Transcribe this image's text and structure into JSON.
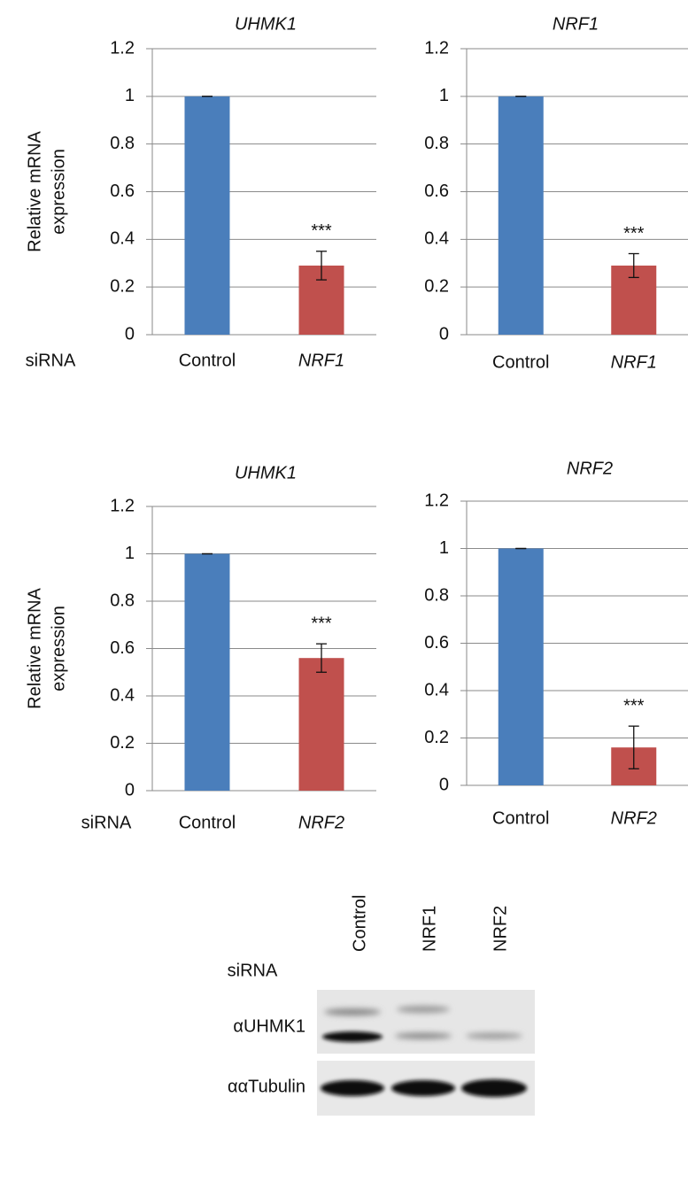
{
  "chart_data": [
    {
      "type": "bar",
      "title": "UHMK1",
      "ylabel": [
        "Relative mRNA",
        "expression"
      ],
      "xlabel": "siRNA",
      "categories": [
        "Control",
        "NRF1"
      ],
      "values": [
        1,
        0.29
      ],
      "errors": [
        0,
        0.06
      ],
      "colors": [
        "#4a7ebb",
        "#c0504d"
      ],
      "annotations": [
        {
          "x": "NRF1",
          "text": "***"
        }
      ],
      "ylim": [
        0,
        1.2
      ],
      "yticks": [
        0,
        0.2,
        0.4,
        0.6,
        0.8,
        1,
        1.2
      ],
      "grid": true
    },
    {
      "type": "bar",
      "title": "NRF1",
      "categories": [
        "Control",
        "NRF1"
      ],
      "values": [
        1,
        0.29
      ],
      "errors": [
        0,
        0.05
      ],
      "colors": [
        "#4a7ebb",
        "#c0504d"
      ],
      "annotations": [
        {
          "x": "NRF1",
          "text": "***"
        }
      ],
      "ylim": [
        0,
        1.2
      ],
      "yticks": [
        0,
        0.2,
        0.4,
        0.6,
        0.8,
        1,
        1.2
      ],
      "grid": true
    },
    {
      "type": "bar",
      "title": "UHMK1",
      "ylabel": [
        "Relative mRNA",
        "expression"
      ],
      "xlabel": "siRNA",
      "categories": [
        "Control",
        "NRF2"
      ],
      "values": [
        1,
        0.56
      ],
      "errors": [
        0,
        0.06
      ],
      "colors": [
        "#4a7ebb",
        "#c0504d"
      ],
      "annotations": [
        {
          "x": "NRF2",
          "text": "***"
        }
      ],
      "ylim": [
        0,
        1.2
      ],
      "yticks": [
        0,
        0.2,
        0.4,
        0.6,
        0.8,
        1,
        1.2
      ],
      "grid": true
    },
    {
      "type": "bar",
      "title": "NRF2",
      "categories": [
        "Control",
        "NRF2"
      ],
      "values": [
        1,
        0.16
      ],
      "errors": [
        0,
        0.09
      ],
      "colors": [
        "#4a7ebb",
        "#c0504d"
      ],
      "annotations": [
        {
          "x": "NRF2",
          "text": "***"
        }
      ],
      "ylim": [
        0,
        1.2
      ],
      "yticks": [
        0,
        0.2,
        0.4,
        0.6,
        0.8,
        1,
        1.2
      ],
      "grid": true
    }
  ],
  "blot": {
    "row_label": "siRNA",
    "lanes": [
      "Control",
      "NRF1",
      "NRF2"
    ],
    "antibodies": [
      "αUHMK1",
      "ααTubulin"
    ]
  }
}
